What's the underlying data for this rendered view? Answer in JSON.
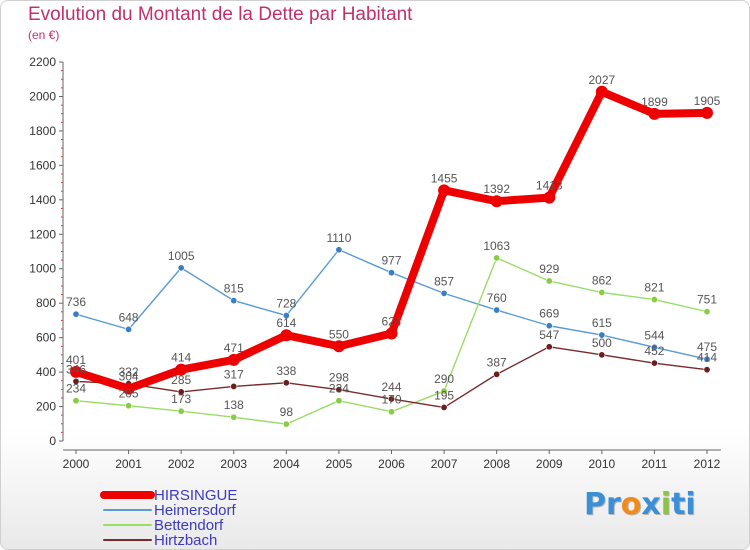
{
  "header": {
    "title": "Evolution du Montant de la Dette par Habitant",
    "unit": "(en €)"
  },
  "logo": {
    "text": "Proxiti",
    "letters": [
      {
        "ch": "P",
        "color": "#3a8fd6"
      },
      {
        "ch": "r",
        "color": "#3a8fd6"
      },
      {
        "ch": "o",
        "color": "#f08a1c"
      },
      {
        "ch": "x",
        "color": "#3a8fd6"
      },
      {
        "ch": "i",
        "color": "#8bc53f"
      },
      {
        "ch": "t",
        "color": "#3a8fd6"
      },
      {
        "ch": "i",
        "color": "#3a8fd6"
      }
    ]
  },
  "chart_data": {
    "type": "line",
    "title": "Evolution du Montant de la Dette par Habitant",
    "subtitle": "(en €)",
    "xlabel": "",
    "ylabel": "",
    "x": [
      "2000",
      "2001",
      "2002",
      "2003",
      "2004",
      "2005",
      "2006",
      "2007",
      "2008",
      "2009",
      "2010",
      "2011",
      "2012"
    ],
    "ylim": [
      0,
      2200
    ],
    "yticks": [
      0,
      200,
      400,
      600,
      800,
      1000,
      1200,
      1400,
      1600,
      1800,
      2000,
      2200
    ],
    "grid": false,
    "legend_position": "bottom-left",
    "series": [
      {
        "name": "HIRSINGUE",
        "color": "#ee0000",
        "dot": "#ee0000",
        "values": [
          401,
          304,
          414,
          471,
          614,
          550,
          624,
          1455,
          1392,
          1413,
          2027,
          1899,
          1905
        ],
        "labels": [
          "401",
          "304",
          "414",
          "471",
          "614",
          "550",
          "624",
          "1455",
          "1392",
          "1413",
          "2027",
          "1899",
          "1905"
        ]
      },
      {
        "name": "Heimersdorf",
        "color": "#5b9bd5",
        "dot": "#3a7ec4",
        "values": [
          736,
          648,
          1005,
          815,
          728,
          1110,
          977,
          857,
          760,
          669,
          615,
          544,
          475
        ],
        "labels": [
          "736",
          "648",
          "1005",
          "815",
          "728",
          "1110",
          "977",
          "857",
          "760",
          "669",
          "615",
          "544",
          "475"
        ]
      },
      {
        "name": "Bettendorf",
        "color": "#99dd66",
        "dot": "#88cc44",
        "values": [
          234,
          205,
          173,
          138,
          98,
          234,
          170,
          290,
          1063,
          929,
          862,
          821,
          751
        ],
        "labels": [
          "234",
          "205",
          "173",
          "138",
          "98",
          "234",
          "170",
          "290",
          "1063",
          "929",
          "862",
          "821",
          "751"
        ]
      },
      {
        "name": "Hirtzbach",
        "color": "#7a2a2a",
        "dot": "#6a1f1f",
        "values": [
          346,
          332,
          285,
          317,
          338,
          298,
          244,
          195,
          387,
          547,
          500,
          452,
          414
        ],
        "labels": [
          "346",
          "332",
          "285",
          "317",
          "338",
          "298",
          "244",
          "195",
          "387",
          "547",
          "500",
          "452",
          "414"
        ]
      }
    ]
  }
}
